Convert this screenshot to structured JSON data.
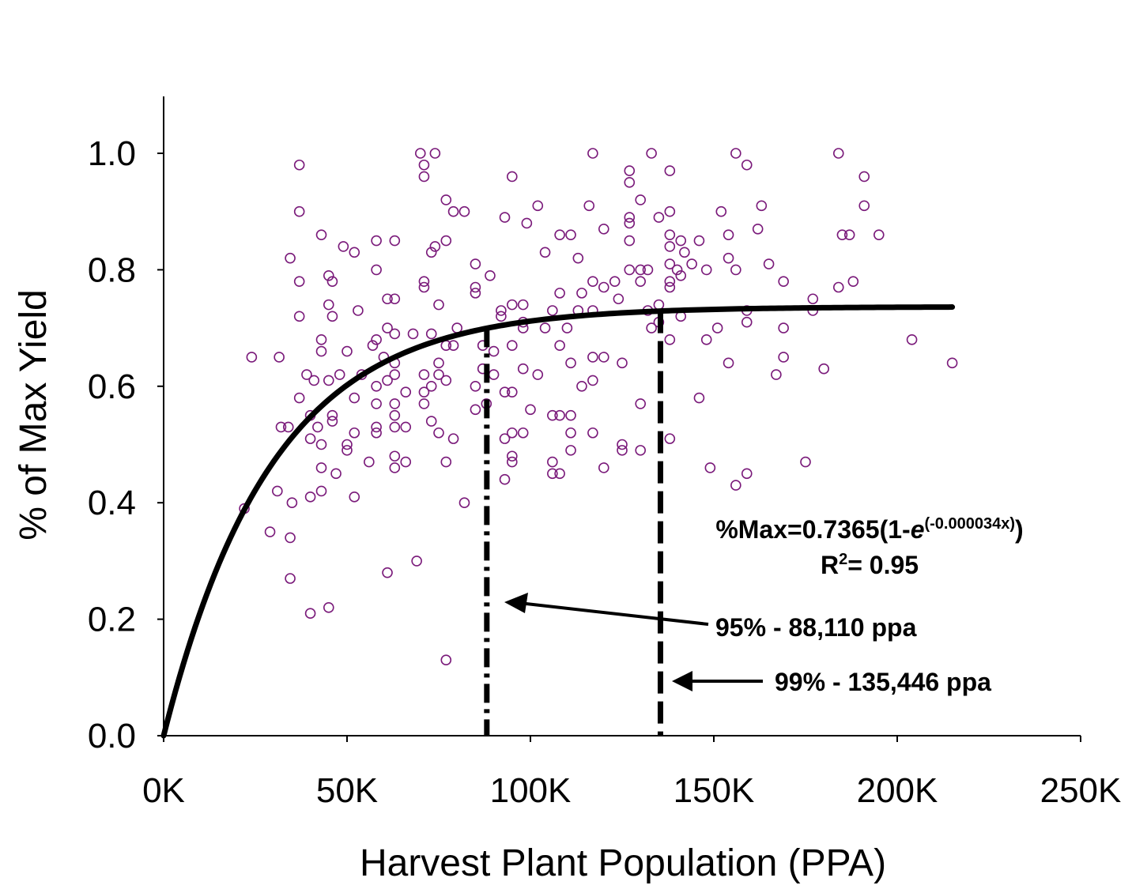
{
  "chart_data": {
    "type": "scatter",
    "xlabel": "Harvest Plant Population (PPA)",
    "ylabel": "% of Max Yield",
    "xlim": [
      0,
      250000
    ],
    "ylim": [
      0,
      1.1
    ],
    "x_ticks": [
      0,
      50000,
      100000,
      150000,
      200000,
      250000
    ],
    "x_tick_labels": [
      "0K",
      "50K",
      "100K",
      "150K",
      "200K",
      "250K"
    ],
    "y_ticks": [
      0,
      0.2,
      0.4,
      0.6,
      0.8,
      1.0
    ],
    "y_tick_labels": [
      "0.0",
      "0.2",
      "0.4",
      "0.6",
      "0.8",
      "1.0"
    ],
    "grid": false,
    "marker_color": "#7a1a7a",
    "fit_color": "#000000",
    "fit": {
      "a": 0.7365,
      "k": 3.4e-05,
      "x_range": [
        0,
        215000
      ]
    },
    "equation": {
      "prefix": "%Max=0.7365(1-",
      "base": "e",
      "exponent": "(-0.000034x)",
      "suffix": ")",
      "r2_prefix": "R",
      "r2_sup": "2",
      "r2_value": "= 0.95"
    },
    "thresholds": [
      {
        "x": 88110,
        "label": "95% - 88,110 ppa",
        "style": "dash-dot"
      },
      {
        "x": 135446,
        "label": "99% - 135,446 ppa",
        "style": "dashed"
      }
    ],
    "series": [
      {
        "points": [
          [
            22000,
            0.39
          ],
          [
            24000,
            0.65
          ],
          [
            29000,
            0.35
          ],
          [
            31000,
            0.42
          ],
          [
            32000,
            0.53
          ],
          [
            31500,
            0.65
          ],
          [
            34000,
            0.53
          ],
          [
            34500,
            0.82
          ],
          [
            35000,
            0.4
          ],
          [
            34500,
            0.34
          ],
          [
            34500,
            0.27
          ],
          [
            37000,
            0.98
          ],
          [
            37000,
            0.9
          ],
          [
            37000,
            0.78
          ],
          [
            37000,
            0.72
          ],
          [
            37000,
            0.58
          ],
          [
            39000,
            0.62
          ],
          [
            40000,
            0.55
          ],
          [
            40000,
            0.51
          ],
          [
            40000,
            0.41
          ],
          [
            40000,
            0.21
          ],
          [
            41000,
            0.61
          ],
          [
            42000,
            0.53
          ],
          [
            43000,
            0.86
          ],
          [
            43000,
            0.68
          ],
          [
            43000,
            0.66
          ],
          [
            43000,
            0.5
          ],
          [
            43000,
            0.46
          ],
          [
            43000,
            0.42
          ],
          [
            45000,
            0.79
          ],
          [
            45000,
            0.74
          ],
          [
            45000,
            0.61
          ],
          [
            45000,
            0.22
          ],
          [
            46000,
            0.78
          ],
          [
            46000,
            0.72
          ],
          [
            46000,
            0.55
          ],
          [
            46000,
            0.54
          ],
          [
            47000,
            0.45
          ],
          [
            48000,
            0.62
          ],
          [
            49000,
            0.84
          ],
          [
            50000,
            0.66
          ],
          [
            50000,
            0.5
          ],
          [
            50000,
            0.49
          ],
          [
            52000,
            0.83
          ],
          [
            52000,
            0.58
          ],
          [
            52000,
            0.52
          ],
          [
            52000,
            0.41
          ],
          [
            53000,
            0.73
          ],
          [
            54000,
            0.62
          ],
          [
            56000,
            0.47
          ],
          [
            57000,
            0.67
          ],
          [
            58000,
            0.85
          ],
          [
            58000,
            0.8
          ],
          [
            58000,
            0.68
          ],
          [
            58000,
            0.6
          ],
          [
            58000,
            0.57
          ],
          [
            58000,
            0.53
          ],
          [
            58000,
            0.52
          ],
          [
            60000,
            0.65
          ],
          [
            61000,
            0.75
          ],
          [
            61000,
            0.7
          ],
          [
            61000,
            0.61
          ],
          [
            61000,
            0.28
          ],
          [
            63000,
            0.85
          ],
          [
            63000,
            0.75
          ],
          [
            63000,
            0.69
          ],
          [
            63000,
            0.64
          ],
          [
            63000,
            0.62
          ],
          [
            63000,
            0.57
          ],
          [
            63000,
            0.55
          ],
          [
            63000,
            0.53
          ],
          [
            63000,
            0.48
          ],
          [
            63000,
            0.46
          ],
          [
            66000,
            0.59
          ],
          [
            66000,
            0.53
          ],
          [
            66000,
            0.47
          ],
          [
            68000,
            0.69
          ],
          [
            69000,
            0.3
          ],
          [
            70000,
            1.0
          ],
          [
            71000,
            0.98
          ],
          [
            71000,
            0.96
          ],
          [
            71000,
            0.78
          ],
          [
            71000,
            0.77
          ],
          [
            71000,
            0.62
          ],
          [
            71000,
            0.59
          ],
          [
            71000,
            0.57
          ],
          [
            73000,
            0.83
          ],
          [
            73000,
            0.69
          ],
          [
            73000,
            0.6
          ],
          [
            73000,
            0.54
          ],
          [
            74000,
            1.0
          ],
          [
            74000,
            0.84
          ],
          [
            75000,
            0.74
          ],
          [
            75000,
            0.64
          ],
          [
            75000,
            0.62
          ],
          [
            75000,
            0.52
          ],
          [
            77000,
            0.92
          ],
          [
            77000,
            0.85
          ],
          [
            77000,
            0.67
          ],
          [
            77000,
            0.61
          ],
          [
            77000,
            0.47
          ],
          [
            77000,
            0.13
          ],
          [
            79000,
            0.9
          ],
          [
            79000,
            0.67
          ],
          [
            79000,
            0.51
          ],
          [
            80000,
            0.7
          ],
          [
            82000,
            0.9
          ],
          [
            82000,
            0.4
          ],
          [
            85000,
            0.81
          ],
          [
            85000,
            0.77
          ],
          [
            85000,
            0.76
          ],
          [
            85000,
            0.6
          ],
          [
            85000,
            0.56
          ],
          [
            87000,
            0.67
          ],
          [
            87000,
            0.63
          ],
          [
            88000,
            0.57
          ],
          [
            89000,
            0.79
          ],
          [
            90000,
            0.66
          ],
          [
            90000,
            0.62
          ],
          [
            92000,
            0.73
          ],
          [
            92000,
            0.72
          ],
          [
            93000,
            0.89
          ],
          [
            93000,
            0.59
          ],
          [
            93000,
            0.51
          ],
          [
            93000,
            0.44
          ],
          [
            95000,
            0.96
          ],
          [
            95000,
            0.74
          ],
          [
            95000,
            0.67
          ],
          [
            95000,
            0.59
          ],
          [
            95000,
            0.48
          ],
          [
            95000,
            0.47
          ],
          [
            95000,
            0.52
          ],
          [
            98000,
            0.74
          ],
          [
            98000,
            0.71
          ],
          [
            98000,
            0.7
          ],
          [
            98000,
            0.63
          ],
          [
            98000,
            0.52
          ],
          [
            99000,
            0.88
          ],
          [
            100000,
            0.56
          ],
          [
            102000,
            0.91
          ],
          [
            102000,
            0.62
          ],
          [
            104000,
            0.83
          ],
          [
            104000,
            0.7
          ],
          [
            106000,
            0.73
          ],
          [
            106000,
            0.55
          ],
          [
            106000,
            0.47
          ],
          [
            106000,
            0.45
          ],
          [
            108000,
            0.86
          ],
          [
            108000,
            0.76
          ],
          [
            108000,
            0.67
          ],
          [
            108000,
            0.55
          ],
          [
            108000,
            0.45
          ],
          [
            110000,
            0.7
          ],
          [
            111000,
            0.86
          ],
          [
            111000,
            0.64
          ],
          [
            111000,
            0.55
          ],
          [
            111000,
            0.52
          ],
          [
            111000,
            0.49
          ],
          [
            113000,
            0.82
          ],
          [
            113000,
            0.73
          ],
          [
            114000,
            0.76
          ],
          [
            114000,
            0.6
          ],
          [
            116000,
            0.91
          ],
          [
            117000,
            1.0
          ],
          [
            117000,
            0.78
          ],
          [
            117000,
            0.73
          ],
          [
            117000,
            0.65
          ],
          [
            117000,
            0.61
          ],
          [
            117000,
            0.52
          ],
          [
            120000,
            0.87
          ],
          [
            120000,
            0.77
          ],
          [
            120000,
            0.65
          ],
          [
            120000,
            0.46
          ],
          [
            123000,
            0.78
          ],
          [
            124000,
            0.75
          ],
          [
            125000,
            0.64
          ],
          [
            125000,
            0.5
          ],
          [
            125000,
            0.49
          ],
          [
            127000,
            0.97
          ],
          [
            127000,
            0.95
          ],
          [
            127000,
            0.89
          ],
          [
            127000,
            0.88
          ],
          [
            127000,
            0.85
          ],
          [
            127000,
            0.8
          ],
          [
            130000,
            0.92
          ],
          [
            130000,
            0.8
          ],
          [
            130000,
            0.78
          ],
          [
            130000,
            0.57
          ],
          [
            130000,
            0.49
          ],
          [
            132000,
            0.8
          ],
          [
            132000,
            0.73
          ],
          [
            133000,
            1.0
          ],
          [
            133000,
            0.7
          ],
          [
            135000,
            0.89
          ],
          [
            135000,
            0.74
          ],
          [
            135000,
            0.71
          ],
          [
            138000,
            0.97
          ],
          [
            138000,
            0.9
          ],
          [
            138000,
            0.86
          ],
          [
            138000,
            0.84
          ],
          [
            138000,
            0.81
          ],
          [
            138000,
            0.78
          ],
          [
            138000,
            0.77
          ],
          [
            138000,
            0.68
          ],
          [
            138000,
            0.51
          ],
          [
            140000,
            0.8
          ],
          [
            141000,
            0.85
          ],
          [
            141000,
            0.79
          ],
          [
            141000,
            0.72
          ],
          [
            142000,
            0.83
          ],
          [
            144000,
            0.81
          ],
          [
            146000,
            0.85
          ],
          [
            146000,
            0.58
          ],
          [
            148000,
            0.8
          ],
          [
            148000,
            0.68
          ],
          [
            149000,
            0.46
          ],
          [
            151000,
            0.7
          ],
          [
            152000,
            0.9
          ],
          [
            154000,
            0.86
          ],
          [
            154000,
            0.82
          ],
          [
            154000,
            0.64
          ],
          [
            156000,
            1.0
          ],
          [
            156000,
            0.8
          ],
          [
            156000,
            0.43
          ],
          [
            159000,
            0.98
          ],
          [
            159000,
            0.73
          ],
          [
            159000,
            0.71
          ],
          [
            159000,
            0.45
          ],
          [
            162000,
            0.87
          ],
          [
            163000,
            0.91
          ],
          [
            165000,
            0.81
          ],
          [
            167000,
            0.62
          ],
          [
            169000,
            0.78
          ],
          [
            169000,
            0.7
          ],
          [
            169000,
            0.65
          ],
          [
            175000,
            0.47
          ],
          [
            177000,
            0.75
          ],
          [
            177000,
            0.73
          ],
          [
            180000,
            0.63
          ],
          [
            184000,
            1.0
          ],
          [
            184000,
            0.77
          ],
          [
            185000,
            0.86
          ],
          [
            187000,
            0.86
          ],
          [
            188000,
            0.78
          ],
          [
            191000,
            0.96
          ],
          [
            191000,
            0.91
          ],
          [
            195000,
            0.86
          ],
          [
            204000,
            0.68
          ],
          [
            215000,
            0.64
          ]
        ]
      }
    ]
  }
}
